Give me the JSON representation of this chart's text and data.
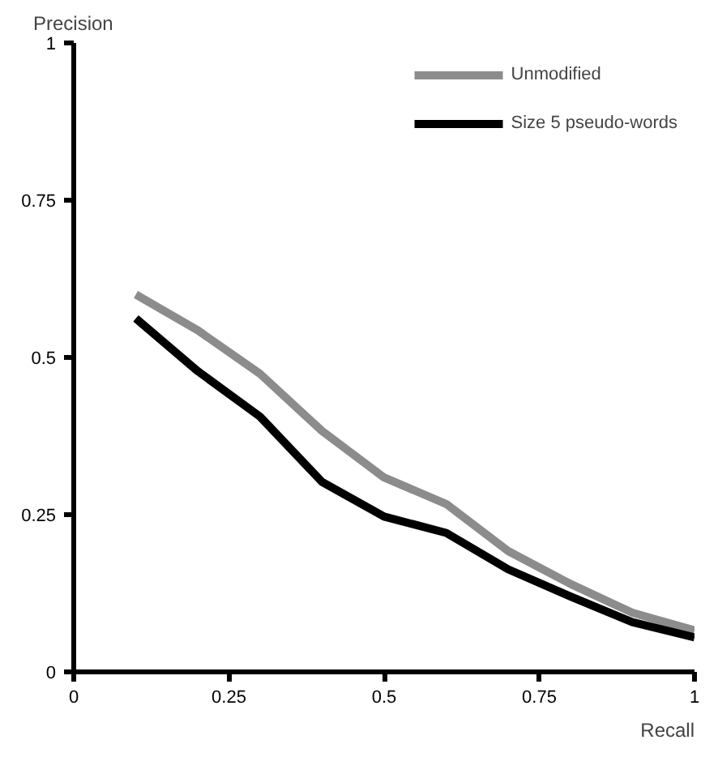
{
  "chart_data": {
    "type": "line",
    "xlabel": "Recall",
    "ylabel": "Precision",
    "x": [
      0.1,
      0.2,
      0.3,
      0.4,
      0.5,
      0.6,
      0.7,
      0.8,
      0.9,
      1.0
    ],
    "series": [
      {
        "name": "Unmodified",
        "color": "#8c8c8c",
        "values": [
          0.6,
          0.543,
          0.474,
          0.383,
          0.309,
          0.267,
          0.192,
          0.14,
          0.094,
          0.066
        ]
      },
      {
        "name": "Size 5 pseudo-words",
        "color": "#000000",
        "values": [
          0.562,
          0.478,
          0.406,
          0.302,
          0.247,
          0.221,
          0.163,
          0.12,
          0.079,
          0.055
        ]
      }
    ],
    "xlim": [
      0,
      1
    ],
    "ylim": [
      0,
      1
    ],
    "xticks": [
      0,
      0.25,
      0.5,
      0.75,
      1
    ],
    "yticks": [
      0,
      0.25,
      0.5,
      0.75,
      1
    ],
    "grid": false,
    "legend": "top right",
    "marker": "none",
    "line_style": "solid"
  }
}
